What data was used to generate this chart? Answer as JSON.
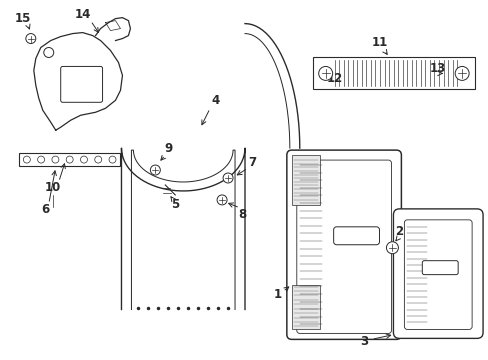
{
  "bg_color": "#ffffff",
  "lc": "#2a2a2a",
  "figsize": [
    4.89,
    3.6
  ],
  "dpi": 100
}
